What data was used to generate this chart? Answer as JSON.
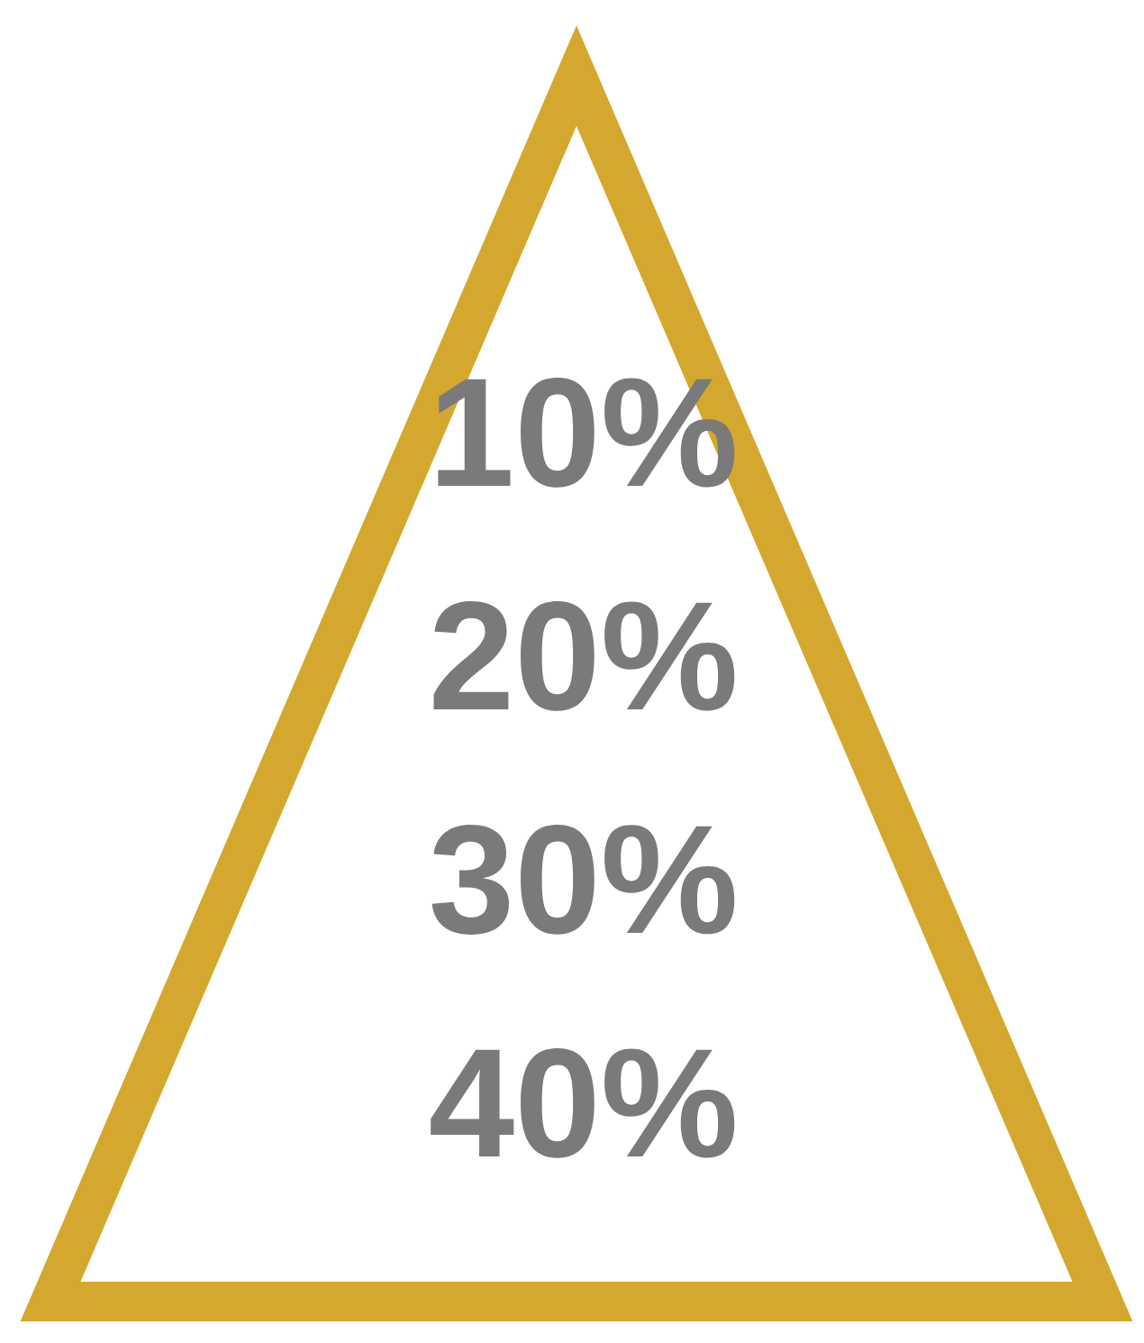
{
  "chart_data": {
    "type": "other",
    "categories": [
      null,
      null,
      null,
      null
    ],
    "values": [
      10,
      20,
      30,
      40
    ],
    "value_labels": [
      "10%",
      "20%",
      "30%",
      "40%"
    ],
    "color": "#d4a82e"
  }
}
